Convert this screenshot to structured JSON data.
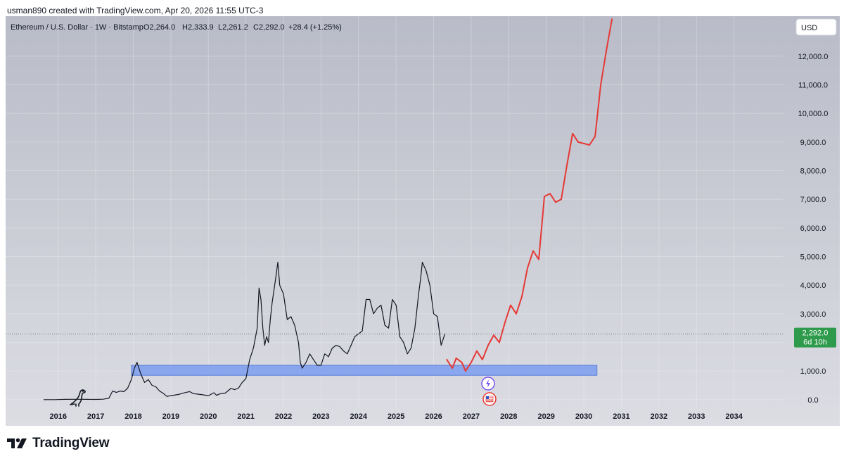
{
  "header": {
    "created_by": "usman890 created with TradingView.com, Apr 20, 2026 11:55 UTC-3"
  },
  "legend": {
    "symbol": "Ethereum / U.S. Dollar · 1W · Bitstamp",
    "open": "O2,264.0",
    "high": "H2,333.9",
    "low": "L2,261.2",
    "close": "C2,292.0",
    "change": "+28.4 (+1.25%)"
  },
  "currency_button": "USD",
  "price_badge": {
    "price": "2,292.0",
    "countdown": "6d 10h"
  },
  "footer": {
    "brand": "TradingView"
  },
  "colors": {
    "background_top": "#b9bcc8",
    "background_bottom": "#dcdde3",
    "price_line": "#131722",
    "projection": "#e53935",
    "support_zone": "#7b9cf0",
    "badge": "#2e9a4b"
  },
  "icons": [
    "dinosaur-icon",
    "events-icon",
    "us-flag-icon"
  ],
  "chart_data": {
    "type": "line",
    "title": "",
    "yaxis": {
      "ticks": [
        0,
        1000,
        2000,
        3000,
        4000,
        5000,
        6000,
        7000,
        8000,
        9000,
        10000,
        11000,
        12000
      ],
      "tick_labels": [
        "0.0",
        "1,000.0",
        "2,000.0",
        "3,000.0",
        "4,000.0",
        "5,000.0",
        "6,000.0",
        "7,000.0",
        "8,000.0",
        "9,000.0",
        "10,000.0",
        "11,000.0",
        "12,000.0"
      ],
      "range": [
        -300,
        13400
      ]
    },
    "xaxis": {
      "ticks": [
        2016,
        2017,
        2018,
        2019,
        2020,
        2021,
        2022,
        2023,
        2024,
        2025,
        2026,
        2027,
        2028,
        2029,
        2030,
        2031,
        2032,
        2033,
        2034
      ],
      "tick_labels": [
        "2016",
        "2017",
        "2018",
        "2019",
        "2020",
        "2021",
        "2022",
        "2023",
        "2024",
        "2025",
        "2026",
        "2027",
        "2028",
        "2029",
        "2030",
        "2031",
        "2032",
        "2033",
        "2034"
      ],
      "range": [
        2014.6,
        2035.3
      ]
    },
    "series": [
      {
        "x": [
          2015.62,
          2015.9,
          2016.2,
          2016.5,
          2016.8,
          2017.0,
          2017.2,
          2017.35,
          2017.45,
          2017.55,
          2017.65,
          2017.75,
          2017.85,
          2017.95,
          2018.03,
          2018.1,
          2018.2,
          2018.3,
          2018.4,
          2018.5,
          2018.6,
          2018.7,
          2018.8,
          2018.9,
          2019.0,
          2019.2,
          2019.4,
          2019.5,
          2019.6,
          2019.8,
          2020.0,
          2020.15,
          2020.22,
          2020.3,
          2020.45,
          2020.6,
          2020.7,
          2020.8,
          2020.9,
          2021.0,
          2021.1,
          2021.2,
          2021.3,
          2021.35,
          2021.4,
          2021.45,
          2021.5,
          2021.55,
          2021.6,
          2021.65,
          2021.7,
          2021.8,
          2021.85,
          2021.9,
          2022.0,
          2022.1,
          2022.2,
          2022.3,
          2022.4,
          2022.45,
          2022.5,
          2022.6,
          2022.7,
          2022.8,
          2022.9,
          2023.0,
          2023.1,
          2023.2,
          2023.3,
          2023.4,
          2023.5,
          2023.6,
          2023.7,
          2023.8,
          2023.9,
          2024.0,
          2024.1,
          2024.2,
          2024.3,
          2024.4,
          2024.5,
          2024.6,
          2024.7,
          2024.8,
          2024.9,
          2025.0,
          2025.1,
          2025.2,
          2025.3,
          2025.4,
          2025.5,
          2025.6,
          2025.65,
          2025.7,
          2025.8,
          2025.9,
          2026.0,
          2026.1,
          2026.2,
          2026.3
        ],
        "y": [
          1,
          1,
          10,
          12,
          10,
          8,
          15,
          50,
          300,
          250,
          300,
          280,
          400,
          700,
          1100,
          1300,
          900,
          600,
          700,
          500,
          450,
          300,
          220,
          110,
          140,
          180,
          250,
          280,
          210,
          180,
          140,
          240,
          150,
          200,
          230,
          390,
          350,
          400,
          600,
          730,
          1400,
          1800,
          2500,
          3900,
          3500,
          2500,
          1900,
          2200,
          2000,
          2800,
          3400,
          4300,
          4800,
          4000,
          3700,
          2800,
          2900,
          2600,
          2000,
          1300,
          1100,
          1300,
          1600,
          1400,
          1200,
          1200,
          1600,
          1500,
          1800,
          1900,
          1850,
          1700,
          1600,
          1900,
          2200,
          2300,
          2400,
          3500,
          3500,
          3000,
          3200,
          3300,
          2600,
          2500,
          3500,
          3300,
          2200,
          2000,
          1600,
          1800,
          2500,
          3700,
          4200,
          4800,
          4500,
          4000,
          3000,
          2900,
          1900,
          2300
        ]
      },
      {
        "x": [
          2026.35,
          2026.5,
          2026.6,
          2026.75,
          2026.85,
          2027.0,
          2027.15,
          2027.3,
          2027.45,
          2027.6,
          2027.75,
          2027.9,
          2028.05,
          2028.2,
          2028.35,
          2028.5,
          2028.65,
          2028.8,
          2028.95,
          2029.1,
          2029.25,
          2029.4,
          2029.55,
          2029.7,
          2029.85,
          2030.0,
          2030.15,
          2030.3,
          2030.45,
          2030.6,
          2030.75
        ],
        "y": [
          1400,
          1100,
          1450,
          1300,
          1000,
          1300,
          1700,
          1400,
          1900,
          2250,
          2000,
          2700,
          3300,
          3000,
          3600,
          4600,
          5200,
          4900,
          7100,
          7200,
          6900,
          7000,
          8200,
          9300,
          9000,
          8950,
          8900,
          9200,
          11000,
          12200,
          13300
        ]
      }
    ],
    "zones": [
      {
        "x0": 2017.95,
        "x1": 2030.35,
        "y0": 850,
        "y1": 1200
      }
    ],
    "last_price": 2292.0
  }
}
